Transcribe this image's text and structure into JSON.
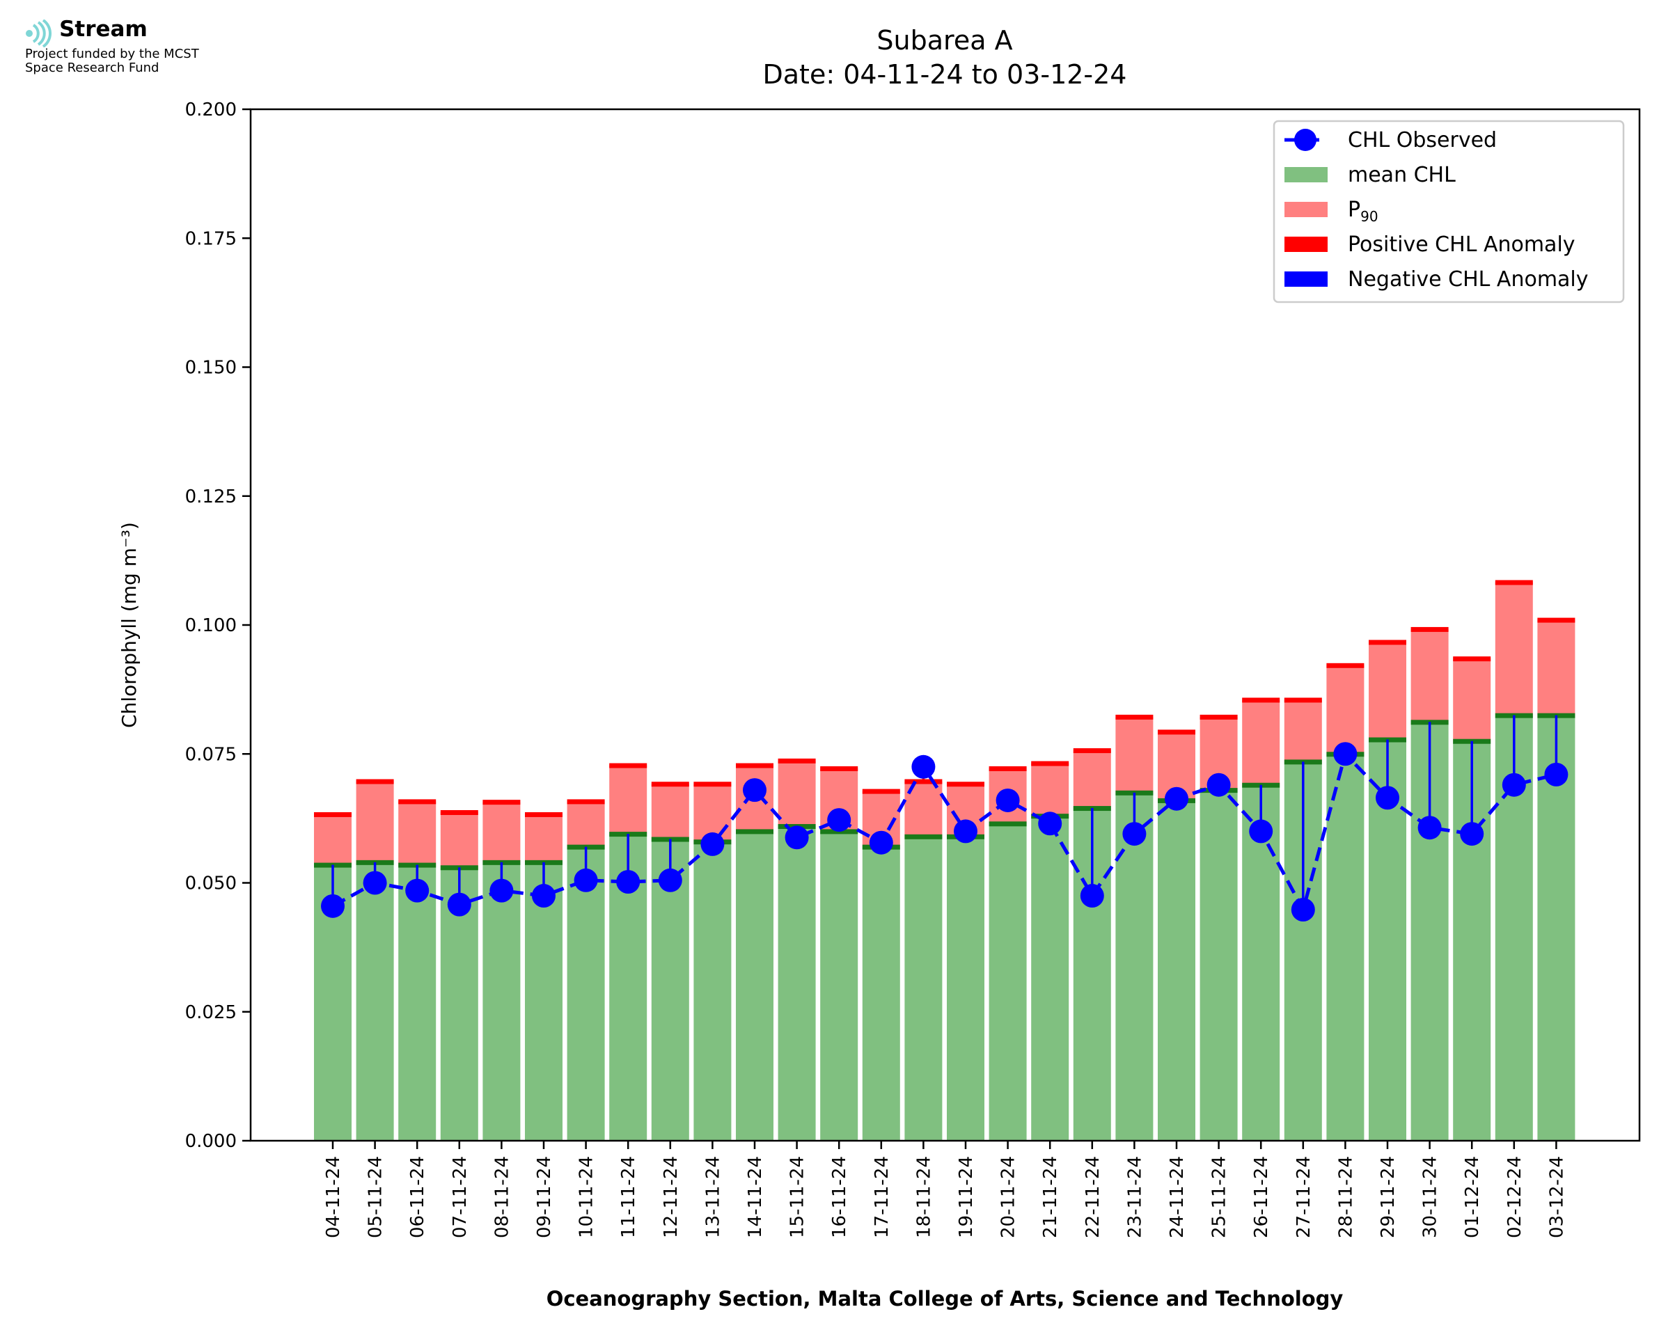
{
  "logo": {
    "name": "Stream",
    "line1": "Project funded by the MCST",
    "line2": "Space Research Fund"
  },
  "chart_data": {
    "type": "bar",
    "title": "Subarea A",
    "subtitle": "Date: 04-11-24 to 03-12-24",
    "xlabel": "Oceanography Section, Malta College of Arts, Science and Technology",
    "ylabel": "Chlorophyll (mg m⁻³)",
    "ylim": [
      0,
      0.2
    ],
    "yticks": [
      "0.000",
      "0.025",
      "0.050",
      "0.075",
      "0.100",
      "0.125",
      "0.150",
      "0.175",
      "0.200"
    ],
    "legend_position": "top-right",
    "categories": [
      "04-11-24",
      "05-11-24",
      "06-11-24",
      "07-11-24",
      "08-11-24",
      "09-11-24",
      "10-11-24",
      "11-11-24",
      "12-11-24",
      "13-11-24",
      "14-11-24",
      "15-11-24",
      "16-11-24",
      "17-11-24",
      "18-11-24",
      "19-11-24",
      "20-11-24",
      "21-11-24",
      "22-11-24",
      "23-11-24",
      "24-11-24",
      "25-11-24",
      "26-11-24",
      "27-11-24",
      "28-11-24",
      "29-11-24",
      "30-11-24",
      "01-12-24",
      "02-12-24",
      "03-12-24"
    ],
    "series": [
      {
        "name": "mean CHL",
        "color": "#80c080",
        "values": [
          0.0535,
          0.054,
          0.0535,
          0.053,
          0.054,
          0.054,
          0.057,
          0.0595,
          0.0585,
          0.058,
          0.06,
          0.061,
          0.06,
          0.057,
          0.059,
          0.059,
          0.0615,
          0.063,
          0.0645,
          0.0675,
          0.066,
          0.068,
          0.069,
          0.0735,
          0.075,
          0.0778,
          0.0812,
          0.0775,
          0.0825,
          0.0825
        ]
      },
      {
        "name": "P₉₀",
        "color": "#ff8080",
        "values": [
          0.0633,
          0.0697,
          0.0658,
          0.0637,
          0.0657,
          0.0633,
          0.0658,
          0.0728,
          0.0692,
          0.0692,
          0.0728,
          0.0737,
          0.0722,
          0.0678,
          0.0697,
          0.0692,
          0.0722,
          0.0732,
          0.0757,
          0.0822,
          0.0793,
          0.0822,
          0.0855,
          0.0855,
          0.0922,
          0.0967,
          0.0992,
          0.0935,
          0.1083,
          0.101
        ]
      },
      {
        "name": "CHL Observed",
        "color": "#0000ff",
        "values": [
          0.0455,
          0.05,
          0.0485,
          0.0458,
          0.0485,
          0.0475,
          0.0505,
          0.0502,
          0.0505,
          0.0575,
          0.068,
          0.0588,
          0.0622,
          0.0578,
          0.0725,
          0.06,
          0.066,
          0.0615,
          0.0475,
          0.0595,
          0.0663,
          0.069,
          0.06,
          0.0448,
          0.075,
          0.0665,
          0.0607,
          0.0595,
          0.069,
          0.071
        ]
      }
    ],
    "legend": [
      {
        "label": "CHL Observed",
        "kind": "line-marker",
        "color": "#0000ff"
      },
      {
        "label": "mean CHL",
        "kind": "patch",
        "color": "#80c080"
      },
      {
        "label": "P",
        "sub": "90",
        "kind": "patch",
        "color": "#ff8080"
      },
      {
        "label": "Positive CHL Anomaly",
        "kind": "patch",
        "color": "#ff0000"
      },
      {
        "label": "Negative CHL Anomaly",
        "kind": "patch",
        "color": "#0000ff"
      }
    ]
  }
}
